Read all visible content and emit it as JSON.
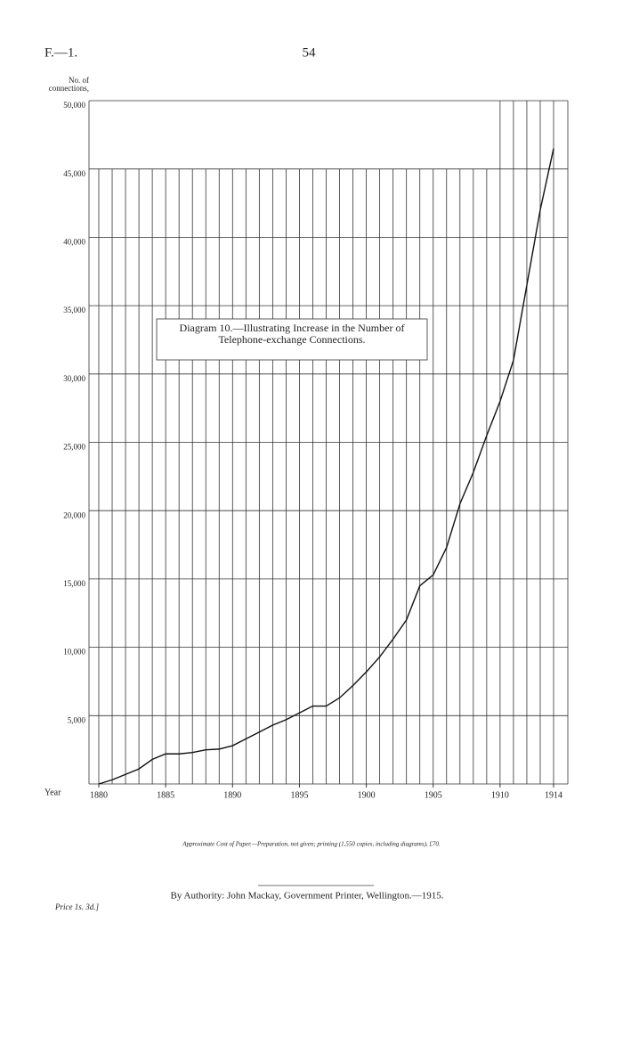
{
  "header": {
    "left": "F.—1.",
    "page": "54"
  },
  "chart_data": {
    "type": "line",
    "y_label": "No. of connections,",
    "x_label": "Year",
    "annotation": "Diagram 10.—Illustrating Increase in the Number of Telephone-exchange Connections.",
    "x": [
      1880,
      1881,
      1882,
      1883,
      1884,
      1885,
      1886,
      1887,
      1888,
      1889,
      1890,
      1891,
      1892,
      1893,
      1894,
      1895,
      1896,
      1897,
      1898,
      1899,
      1900,
      1901,
      1902,
      1903,
      1904,
      1905,
      1906,
      1907,
      1908,
      1909,
      1910,
      1911,
      1912,
      1913,
      1914
    ],
    "values": [
      0,
      300,
      700,
      1100,
      1800,
      2200,
      2200,
      2300,
      2500,
      2550,
      2800,
      3300,
      3800,
      4300,
      4700,
      5200,
      5700,
      5700,
      6300,
      7200,
      8200,
      9300,
      10600,
      12000,
      14500,
      15300,
      17300,
      20500,
      22800,
      25500,
      28000,
      31000,
      36500,
      42000,
      46500
    ],
    "color": "#111111",
    "xlim": [
      1880,
      1914
    ],
    "xticks": [
      1880,
      1885,
      1890,
      1895,
      1900,
      1905,
      1910,
      1914
    ],
    "ylim": [
      0,
      50000
    ],
    "yticks": [
      {
        "value": 5000,
        "label": "5,000"
      },
      {
        "value": 10000,
        "label": "10,000"
      },
      {
        "value": 15000,
        "label": "15,000"
      },
      {
        "value": 20000,
        "label": "20,000"
      },
      {
        "value": 25000,
        "label": "25,000"
      },
      {
        "value": 30000,
        "label": "30,000"
      },
      {
        "value": 35000,
        "label": "35,000"
      },
      {
        "value": 40000,
        "label": "40,000"
      },
      {
        "value": 45000,
        "label": "45,000"
      },
      {
        "value": 50000,
        "label": "50,000"
      }
    ],
    "grid": true
  },
  "footer": {
    "cost": "Approximate Cost of Paper.—Preparation, not given; printing (1,550 copies, including diagrams), £70.",
    "authority": "By Authority: John Mackay, Government Printer, Wellington.—1915.",
    "price": "Price 1s. 3d.]"
  }
}
